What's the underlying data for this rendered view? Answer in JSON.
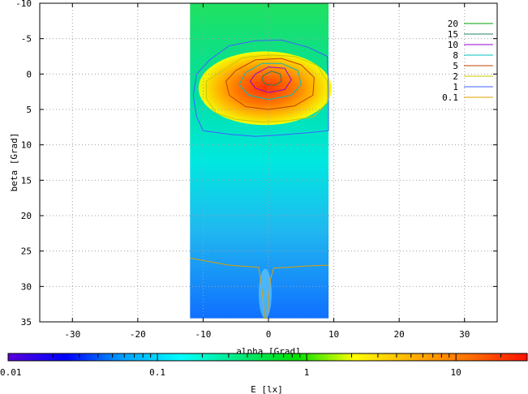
{
  "chart_data": {
    "type": "heatmap",
    "title": "",
    "xlabel": "alpha [Grad]",
    "ylabel": "beta [Grad]",
    "xlim": [
      -35,
      35
    ],
    "ylim": [
      -10,
      35
    ],
    "y_reversed": true,
    "xticks": [
      -30,
      -20,
      -10,
      0,
      10,
      20,
      30
    ],
    "yticks": [
      -10,
      -5,
      0,
      5,
      10,
      15,
      20,
      25,
      30,
      35
    ],
    "grid": true,
    "data_extent": {
      "alpha": [
        -12,
        9.2
      ],
      "beta": [
        -10,
        34.5
      ]
    },
    "legend_position": "top-right",
    "contours": [
      {
        "level": "20",
        "color": "#00a000"
      },
      {
        "level": "15",
        "color": "#208060"
      },
      {
        "level": "10",
        "color": "#9400d3"
      },
      {
        "level": "8",
        "color": "#00c0c0"
      },
      {
        "level": "5",
        "color": "#c04000"
      },
      {
        "level": "2",
        "color": "#c8c800"
      },
      {
        "level": "1",
        "color": "#4060ff"
      },
      {
        "level": "0.1",
        "color": "#e0a000"
      }
    ],
    "contour_paths": [
      {
        "level": "1",
        "points": [
          [
            -9,
            -2
          ],
          [
            -6,
            -4
          ],
          [
            -2,
            -4.7
          ],
          [
            2,
            -4.8
          ],
          [
            6,
            -3.8
          ],
          [
            9,
            -2.5
          ],
          [
            9.2,
            2
          ],
          [
            9.2,
            8
          ],
          [
            6,
            8.3
          ],
          [
            2,
            8.6
          ],
          [
            -2,
            8.8
          ],
          [
            -6,
            8.5
          ],
          [
            -10,
            8
          ],
          [
            -11,
            6
          ],
          [
            -11.5,
            3
          ],
          [
            -11,
            0
          ],
          [
            -9,
            -2
          ]
        ]
      },
      {
        "level": "2",
        "points": [
          [
            -7,
            -0.5
          ],
          [
            -4,
            -2.3
          ],
          [
            0,
            -2.7
          ],
          [
            4,
            -2.5
          ],
          [
            7.5,
            -1.2
          ],
          [
            9,
            1
          ],
          [
            9,
            4
          ],
          [
            7,
            6
          ],
          [
            3,
            6.6
          ],
          [
            -1,
            6.8
          ],
          [
            -5,
            6.4
          ],
          [
            -8,
            5.5
          ],
          [
            -9.5,
            3.5
          ],
          [
            -9.5,
            1
          ],
          [
            -7,
            -0.5
          ]
        ]
      },
      {
        "level": "5",
        "points": [
          [
            -5,
            -0.5
          ],
          [
            -2,
            -2
          ],
          [
            2,
            -2.2
          ],
          [
            5,
            -1.3
          ],
          [
            7,
            0.5
          ],
          [
            6.8,
            3
          ],
          [
            4,
            4.5
          ],
          [
            0,
            5
          ],
          [
            -3.5,
            4.6
          ],
          [
            -6,
            3
          ],
          [
            -6.5,
            1
          ],
          [
            -5,
            -0.5
          ]
        ]
      },
      {
        "level": "8",
        "points": [
          [
            -3.5,
            -0.2
          ],
          [
            -1,
            -1.5
          ],
          [
            2,
            -1.5
          ],
          [
            4.5,
            -0.5
          ],
          [
            5,
            1.5
          ],
          [
            3.5,
            3
          ],
          [
            0,
            3.6
          ],
          [
            -3,
            3
          ],
          [
            -4.5,
            1.5
          ],
          [
            -3.5,
            -0.2
          ]
        ]
      },
      {
        "level": "10",
        "points": [
          [
            -2,
            0
          ],
          [
            0,
            -1
          ],
          [
            2.5,
            -0.8
          ],
          [
            3.5,
            0.8
          ],
          [
            2.5,
            2.2
          ],
          [
            0,
            2.6
          ],
          [
            -2,
            2
          ],
          [
            -2.8,
            1
          ],
          [
            -2,
            0
          ]
        ]
      },
      {
        "level": "15",
        "points": [
          [
            -0.8,
            0.2
          ],
          [
            0.5,
            -0.4
          ],
          [
            1.8,
            0
          ],
          [
            2,
            1
          ],
          [
            1,
            1.6
          ],
          [
            -0.4,
            1.5
          ],
          [
            -1,
            0.9
          ],
          [
            -0.8,
            0.2
          ]
        ]
      },
      {
        "level": "0.1",
        "points": [
          [
            -12,
            26
          ],
          [
            -9,
            26.5
          ],
          [
            -6,
            27
          ],
          [
            -3,
            27.2
          ],
          [
            -1.5,
            27.3
          ],
          [
            -1.2,
            29
          ],
          [
            -0.8,
            32
          ],
          [
            -0.6,
            34.5
          ],
          [
            -0.2,
            34.5
          ],
          [
            0,
            32
          ],
          [
            0.3,
            29
          ],
          [
            0.8,
            27.4
          ],
          [
            3,
            27.3
          ],
          [
            6,
            27.1
          ],
          [
            9.2,
            27
          ]
        ]
      }
    ],
    "colorbar": {
      "label": "E [lx]",
      "scale": "log",
      "min": 0.01,
      "max": 30,
      "ticks": [
        "0.01",
        "0.1",
        "1",
        "10"
      ],
      "colors": [
        "#5a00d8",
        "#0000ff",
        "#00a0ff",
        "#00ffff",
        "#00e880",
        "#00e000",
        "#ffff00",
        "#ffb000",
        "#ff7000",
        "#ff1000"
      ]
    }
  }
}
